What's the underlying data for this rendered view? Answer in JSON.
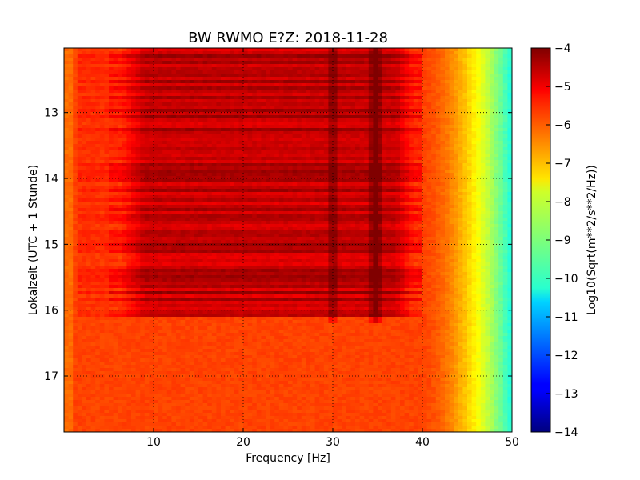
{
  "chart_data": {
    "type": "heatmap",
    "title": "BW RWMO E?Z: 2018-11-28",
    "xlabel": "Frequency [Hz]",
    "ylabel": "Lokalzeit (UTC + 1 Stunde)",
    "xlim": [
      0,
      50
    ],
    "ylim": [
      12.02,
      17.85
    ],
    "y_inverted": true,
    "x_ticks": [
      10,
      20,
      30,
      40,
      50
    ],
    "y_ticks": [
      13,
      14,
      15,
      16,
      17
    ],
    "grid": true,
    "colormap": "jet",
    "colorbar": {
      "label": "Log10(Sqrt(m**2/s**2/Hz))",
      "range": [
        -14,
        -4
      ],
      "ticks": [
        -4,
        -5,
        -6,
        -7,
        -8,
        -9,
        -10,
        -11,
        -12,
        -13,
        -14
      ]
    },
    "pattern": {
      "background_level": -5.9,
      "high_activity_period": [
        12.0,
        16.1
      ],
      "high_activity_band_hz": [
        5,
        40
      ],
      "high_activity_level": -4.6,
      "rolloff_start_hz": 40,
      "level_at_50hz": -10.0,
      "narrow_lines_hz": [
        30,
        34.5,
        35
      ],
      "short_trace_hz": 5,
      "short_trace_time": [
        15.0,
        15.9
      ]
    }
  }
}
